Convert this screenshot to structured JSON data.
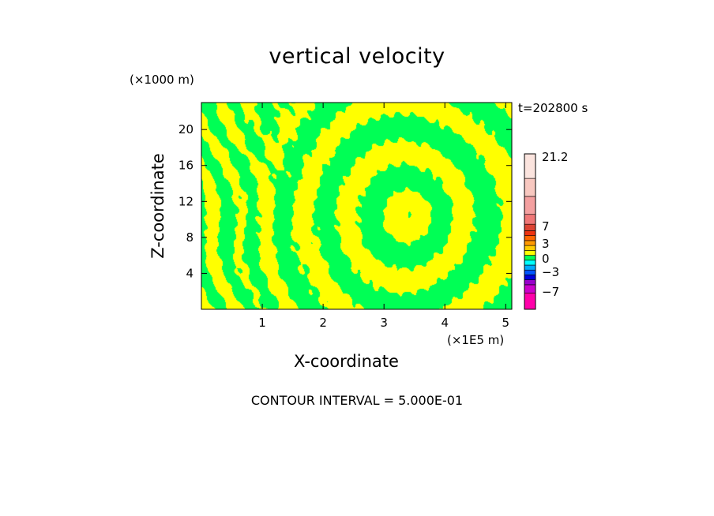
{
  "chart_data": {
    "type": "heatmap",
    "title": "vertical velocity",
    "xlabel": "X-coordinate",
    "ylabel": "Z-coordinate",
    "x_unit": "(×1E5 m)",
    "y_unit": "(×1000 m)",
    "time_label": "t=202800 s",
    "footer": "CONTOUR INTERVAL = 5.000E-01",
    "xlim": [
      0,
      5.1
    ],
    "ylim": [
      0,
      23
    ],
    "x_ticks": [
      "1",
      "2",
      "3",
      "4",
      "5"
    ],
    "x_tick_values": [
      1,
      2,
      3,
      4,
      5
    ],
    "y_ticks": [
      "4",
      "8",
      "12",
      "16",
      "20"
    ],
    "y_tick_values": [
      4,
      8,
      12,
      16,
      20
    ],
    "field_levels": [
      {
        "range": [
          -0.5,
          0.0
        ],
        "color": "#00ff55"
      },
      {
        "range": [
          0.0,
          0.5
        ],
        "color": "#ffff00"
      }
    ],
    "colorbar": {
      "labels": [
        "21.2",
        "7",
        "3",
        "0",
        "-3",
        "-7"
      ],
      "label_values": [
        21.2,
        7,
        3,
        0,
        -3,
        -7
      ],
      "segments": [
        {
          "color": "#ff00aa",
          "weight": 2
        },
        {
          "color": "#cc00cc",
          "weight": 1
        },
        {
          "color": "#9900cc",
          "weight": 0.6
        },
        {
          "color": "#0000dd",
          "weight": 0.6
        },
        {
          "color": "#0055ff",
          "weight": 0.6
        },
        {
          "color": "#00aaff",
          "weight": 0.6
        },
        {
          "color": "#00ffff",
          "weight": 0.6
        },
        {
          "color": "#00ff55",
          "weight": 0.6
        },
        {
          "color": "#ffff00",
          "weight": 0.6
        },
        {
          "color": "#ffcc00",
          "weight": 0.6
        },
        {
          "color": "#ff9900",
          "weight": 0.6
        },
        {
          "color": "#ff6600",
          "weight": 0.6
        },
        {
          "color": "#ee3311",
          "weight": 0.6
        },
        {
          "color": "#dd4433",
          "weight": 0.8
        },
        {
          "color": "#f07777",
          "weight": 1.2
        },
        {
          "color": "#f4a0a0",
          "weight": 2.2
        },
        {
          "color": "#f8c8c0",
          "weight": 2.2
        },
        {
          "color": "#fbe4de",
          "weight": 3
        }
      ]
    }
  }
}
